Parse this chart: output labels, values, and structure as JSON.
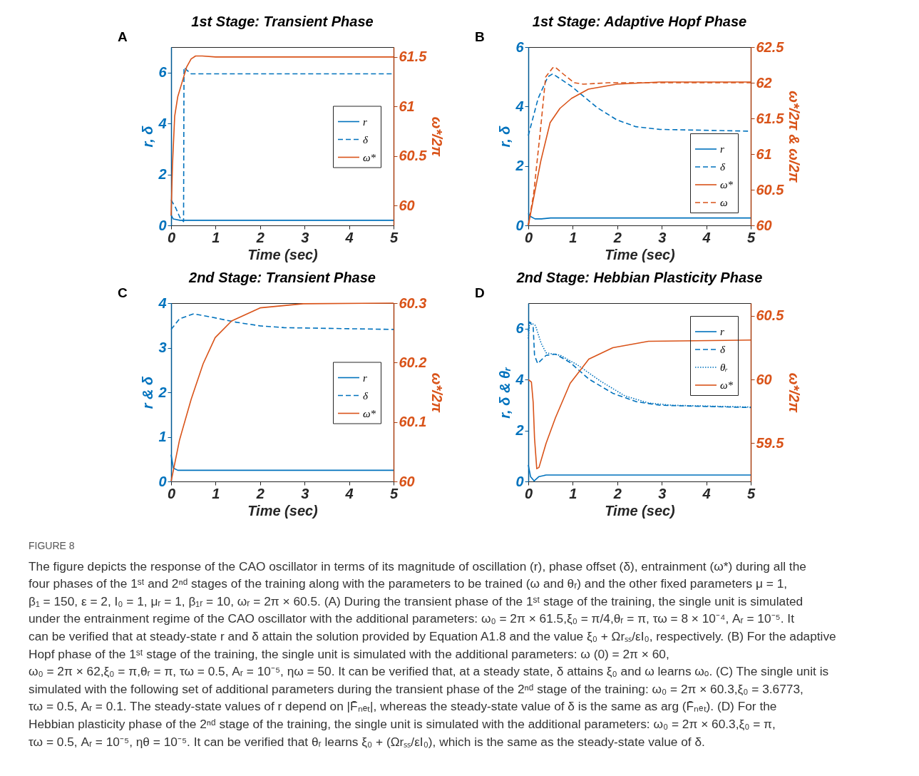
{
  "chart_data": [
    {
      "type": "line",
      "title": "1st Stage: Transient Phase",
      "xlabel": "Time (sec)",
      "ylabel": "r, δ",
      "y2label": "ω*/2π",
      "annotations": [
        "A"
      ],
      "xlim": [
        0,
        5
      ],
      "xticks": [
        0,
        1,
        2,
        3,
        4,
        5
      ],
      "ylim": [
        0,
        7
      ],
      "yticks": [
        0,
        2,
        4,
        6
      ],
      "y2lim": [
        59.8,
        61.6
      ],
      "y2ticks": [
        60,
        60.5,
        61,
        61.5
      ],
      "legend": "right",
      "series": [
        {
          "name": "r",
          "color": "#0072bd",
          "line_style": "solid",
          "x": [
            0,
            0.05,
            0.2,
            5
          ],
          "values": [
            0.4,
            0.25,
            0.2,
            0.2
          ]
        },
        {
          "name": "δ",
          "color": "#0072bd",
          "line_style": "dashed",
          "x": [
            0,
            0.1,
            0.2,
            0.28,
            0.29,
            0.35,
            0.45,
            5
          ],
          "values": [
            1.0,
            0.7,
            0.3,
            0.15,
            6.2,
            6.1,
            5.95,
            5.95
          ]
        },
        {
          "name": "ω*",
          "color": "#d95319",
          "line_style": "solid",
          "axis": "y2",
          "x": [
            0,
            0.03,
            0.08,
            0.15,
            0.25,
            0.35,
            0.45,
            0.55,
            0.7,
            1,
            5
          ],
          "values": [
            59.9,
            60.4,
            60.9,
            61.1,
            61.25,
            61.4,
            61.48,
            61.51,
            61.51,
            61.5,
            61.5
          ]
        }
      ]
    },
    {
      "type": "line",
      "title": "1st Stage: Adaptive Hopf Phase",
      "xlabel": "Time (sec)",
      "ylabel": "r, δ",
      "y2label": "ω*/2π & ω/2π",
      "annotations": [
        "B"
      ],
      "xlim": [
        0,
        5
      ],
      "xticks": [
        0,
        1,
        2,
        3,
        4,
        5
      ],
      "ylim": [
        0,
        6
      ],
      "yticks": [
        0,
        2,
        4,
        6
      ],
      "y2lim": [
        60,
        62.5
      ],
      "y2ticks": [
        60,
        60.5,
        61,
        61.5,
        62,
        62.5
      ],
      "legend": "bottom right",
      "series": [
        {
          "name": "r",
          "color": "#0072bd",
          "line_style": "solid",
          "x": [
            0,
            0.05,
            0.15,
            0.3,
            0.5,
            5
          ],
          "values": [
            0.4,
            0.3,
            0.22,
            0.22,
            0.25,
            0.25
          ]
        },
        {
          "name": "δ",
          "color": "#0072bd",
          "line_style": "dashed",
          "x": [
            0,
            0.22,
            0.44,
            0.55,
            0.97,
            1.56,
            1.99,
            2.42,
            2.95,
            5
          ],
          "values": [
            3.02,
            4.27,
            5.0,
            5.1,
            4.68,
            3.95,
            3.55,
            3.32,
            3.23,
            3.17
          ]
        },
        {
          "name": "ω*",
          "color": "#d95319",
          "line_style": "solid",
          "axis": "y2",
          "x": [
            0,
            0.28,
            0.49,
            0.71,
            0.97,
            1.35,
            1.99,
            2.95,
            5
          ],
          "values": [
            60,
            60.9,
            61.44,
            61.64,
            61.78,
            61.91,
            61.98,
            62.01,
            62.01
          ]
        },
        {
          "name": "ω",
          "color": "#d95319",
          "line_style": "dashed",
          "axis": "y2",
          "x": [
            0,
            0.12,
            0.28,
            0.39,
            0.55,
            0.6,
            0.81,
            1.03,
            1.24,
            1.8,
            5
          ],
          "values": [
            60,
            60.44,
            61.38,
            62.08,
            62.21,
            62.22,
            62.11,
            62.0,
            61.98,
            62.0,
            62.0
          ]
        }
      ]
    },
    {
      "type": "line",
      "title": "2nd Stage: Transient Phase",
      "xlabel": "Time (sec)",
      "ylabel": "r & δ",
      "y2label": "ω*/2π",
      "annotations": [
        "C"
      ],
      "xlim": [
        0,
        5
      ],
      "xticks": [
        0,
        1,
        2,
        3,
        4,
        5
      ],
      "ylim": [
        0,
        4
      ],
      "yticks": [
        0,
        1,
        2,
        3,
        4
      ],
      "y2lim": [
        60,
        60.3
      ],
      "y2ticks": [
        60,
        60.1,
        60.2,
        60.3
      ],
      "legend": "right",
      "series": [
        {
          "name": "r",
          "color": "#0072bd",
          "line_style": "solid",
          "x": [
            0,
            0.05,
            0.15,
            5
          ],
          "values": [
            0.6,
            0.3,
            0.25,
            0.25
          ]
        },
        {
          "name": "δ",
          "color": "#0072bd",
          "line_style": "dashed",
          "x": [
            0,
            0.19,
            0.51,
            0.94,
            1.47,
            2.0,
            2.54,
            5
          ],
          "values": [
            3.41,
            3.65,
            3.76,
            3.68,
            3.57,
            3.49,
            3.45,
            3.41
          ]
        },
        {
          "name": "ω*",
          "color": "#d95319",
          "line_style": "solid",
          "axis": "y2",
          "x": [
            0,
            0.19,
            0.45,
            0.72,
            0.99,
            1.36,
            2.0,
            2.97,
            5
          ],
          "values": [
            60,
            60.07,
            60.138,
            60.198,
            60.242,
            60.27,
            60.292,
            60.299,
            60.3
          ]
        }
      ]
    },
    {
      "type": "line",
      "title": "2nd Stage: Hebbian Plasticity Phase",
      "xlabel": "Time (sec)",
      "ylabel": "r, δ & θᵣ",
      "y2label": "ω*/2π",
      "annotations": [
        "D"
      ],
      "xlim": [
        0,
        5
      ],
      "xticks": [
        0,
        1,
        2,
        3,
        4,
        5
      ],
      "ylim": [
        0,
        7
      ],
      "yticks": [
        0,
        2,
        4,
        6
      ],
      "y2lim": [
        59.2,
        60.6
      ],
      "y2ticks": [
        59.5,
        60,
        60.5
      ],
      "legend": "top right",
      "series": [
        {
          "name": "r",
          "color": "#0072bd",
          "line_style": "solid",
          "x": [
            0,
            0.05,
            0.13,
            0.24,
            0.4,
            5
          ],
          "values": [
            0.65,
            0.19,
            0.02,
            0.19,
            0.25,
            0.25
          ]
        },
        {
          "name": "δ",
          "color": "#0072bd",
          "line_style": "dashed",
          "x": [
            0,
            0.03,
            0.11,
            0.14,
            0.21,
            0.4,
            0.61,
            0.94,
            1.36,
            1.9,
            2.43,
            2.97,
            5
          ],
          "values": [
            5.89,
            6.26,
            6.07,
            4.95,
            4.63,
            4.95,
            5.0,
            4.67,
            4.02,
            3.46,
            3.13,
            2.99,
            2.9
          ]
        },
        {
          "name": "θᵣ",
          "color": "#0072bd",
          "line_style": "dotted",
          "x": [
            0,
            0.03,
            0.16,
            0.29,
            0.4,
            0.72,
            1.1,
            1.63,
            2.17,
            2.7,
            3.24,
            5
          ],
          "values": [
            5.61,
            6.26,
            6.12,
            5.42,
            5.05,
            4.95,
            4.58,
            3.93,
            3.36,
            3.08,
            2.99,
            2.92
          ]
        },
        {
          "name": "ω*",
          "color": "#d95319",
          "line_style": "solid",
          "axis": "y2",
          "x": [
            0,
            0.07,
            0.11,
            0.14,
            0.19,
            0.24,
            0.4,
            0.61,
            0.94,
            1.36,
            1.9,
            2.7,
            5
          ],
          "values": [
            60.0,
            59.98,
            59.82,
            59.54,
            59.3,
            59.31,
            59.5,
            59.7,
            59.97,
            60.16,
            60.25,
            60.3,
            60.31
          ]
        }
      ]
    },
    {
      "type": "other",
      "annotations": [
        "FIGURE 8",
        "The figure depicts the response of the CAO oscillator in terms of its magnitude of oscillation (r), phase offset (δ), entrainment (ω*) during all the",
        "four phases of the 1ˢᵗ and 2ⁿᵈ stages of the training along with the parameters to be trained (ω and θᵣ) and the other fixed parameters μ = 1,",
        "β₁ = 150, ε = 2, I₀ = 1, μᵣ = 1, β₁ᵣ = 10, ωᵣ = 2π × 60.5. (A) During the transient phase of the 1ˢᵗ stage of the training, the single unit is simulated",
        "under the entrainment regime of the CAO oscillator with the additional parameters: ω₀ = 2π × 61.5,ξ₀ = π/4,θᵣ = π, τω = 8 × 10⁻⁴, Aᵣ = 10⁻⁵. It",
        "can be verified that at steady-state r and δ attain the solution provided by Equation A1.8 and the value ξ₀ + Ωrₛₛ/εI₀, respectively. (B) For the adaptive",
        "Hopf phase of the 1ˢᵗ stage of the training, the single unit is simulated with the additional parameters: ω (0) = 2π × 60,",
        "ω₀ = 2π × 62,ξ₀ = π,θᵣ = π, τω = 0.5, Aᵣ = 10⁻⁵, ηω = 50. It can be verified that, at a steady state, δ attains ξ₀ and ω learns ωₒ. (C) The single unit is",
        "simulated with the following set of additional parameters during the transient phase of the 2ⁿᵈ stage of the training: ω₀ = 2π × 60.3,ξ₀ = 3.6773,",
        "τω = 0.5, Aᵣ = 0.1. The steady-state values of r depend on |F̄ₙₑₜ|, whereas the steady-state value of δ is the same as arg (F̄ₙₑₜ). (D) For the",
        "Hebbian plasticity phase of the 2ⁿᵈ stage of the training, the single unit is simulated with the additional parameters: ω₀ = 2π × 60.3,ξ₀ = π,",
        "τω = 0.5, Aᵣ = 10⁻⁵, ηθ = 10⁻⁵. It can be verified that θᵣ learns ξ₀ + (Ωrₛₛ/εI₀), which is the same as the steady-state value of δ."
      ]
    }
  ]
}
